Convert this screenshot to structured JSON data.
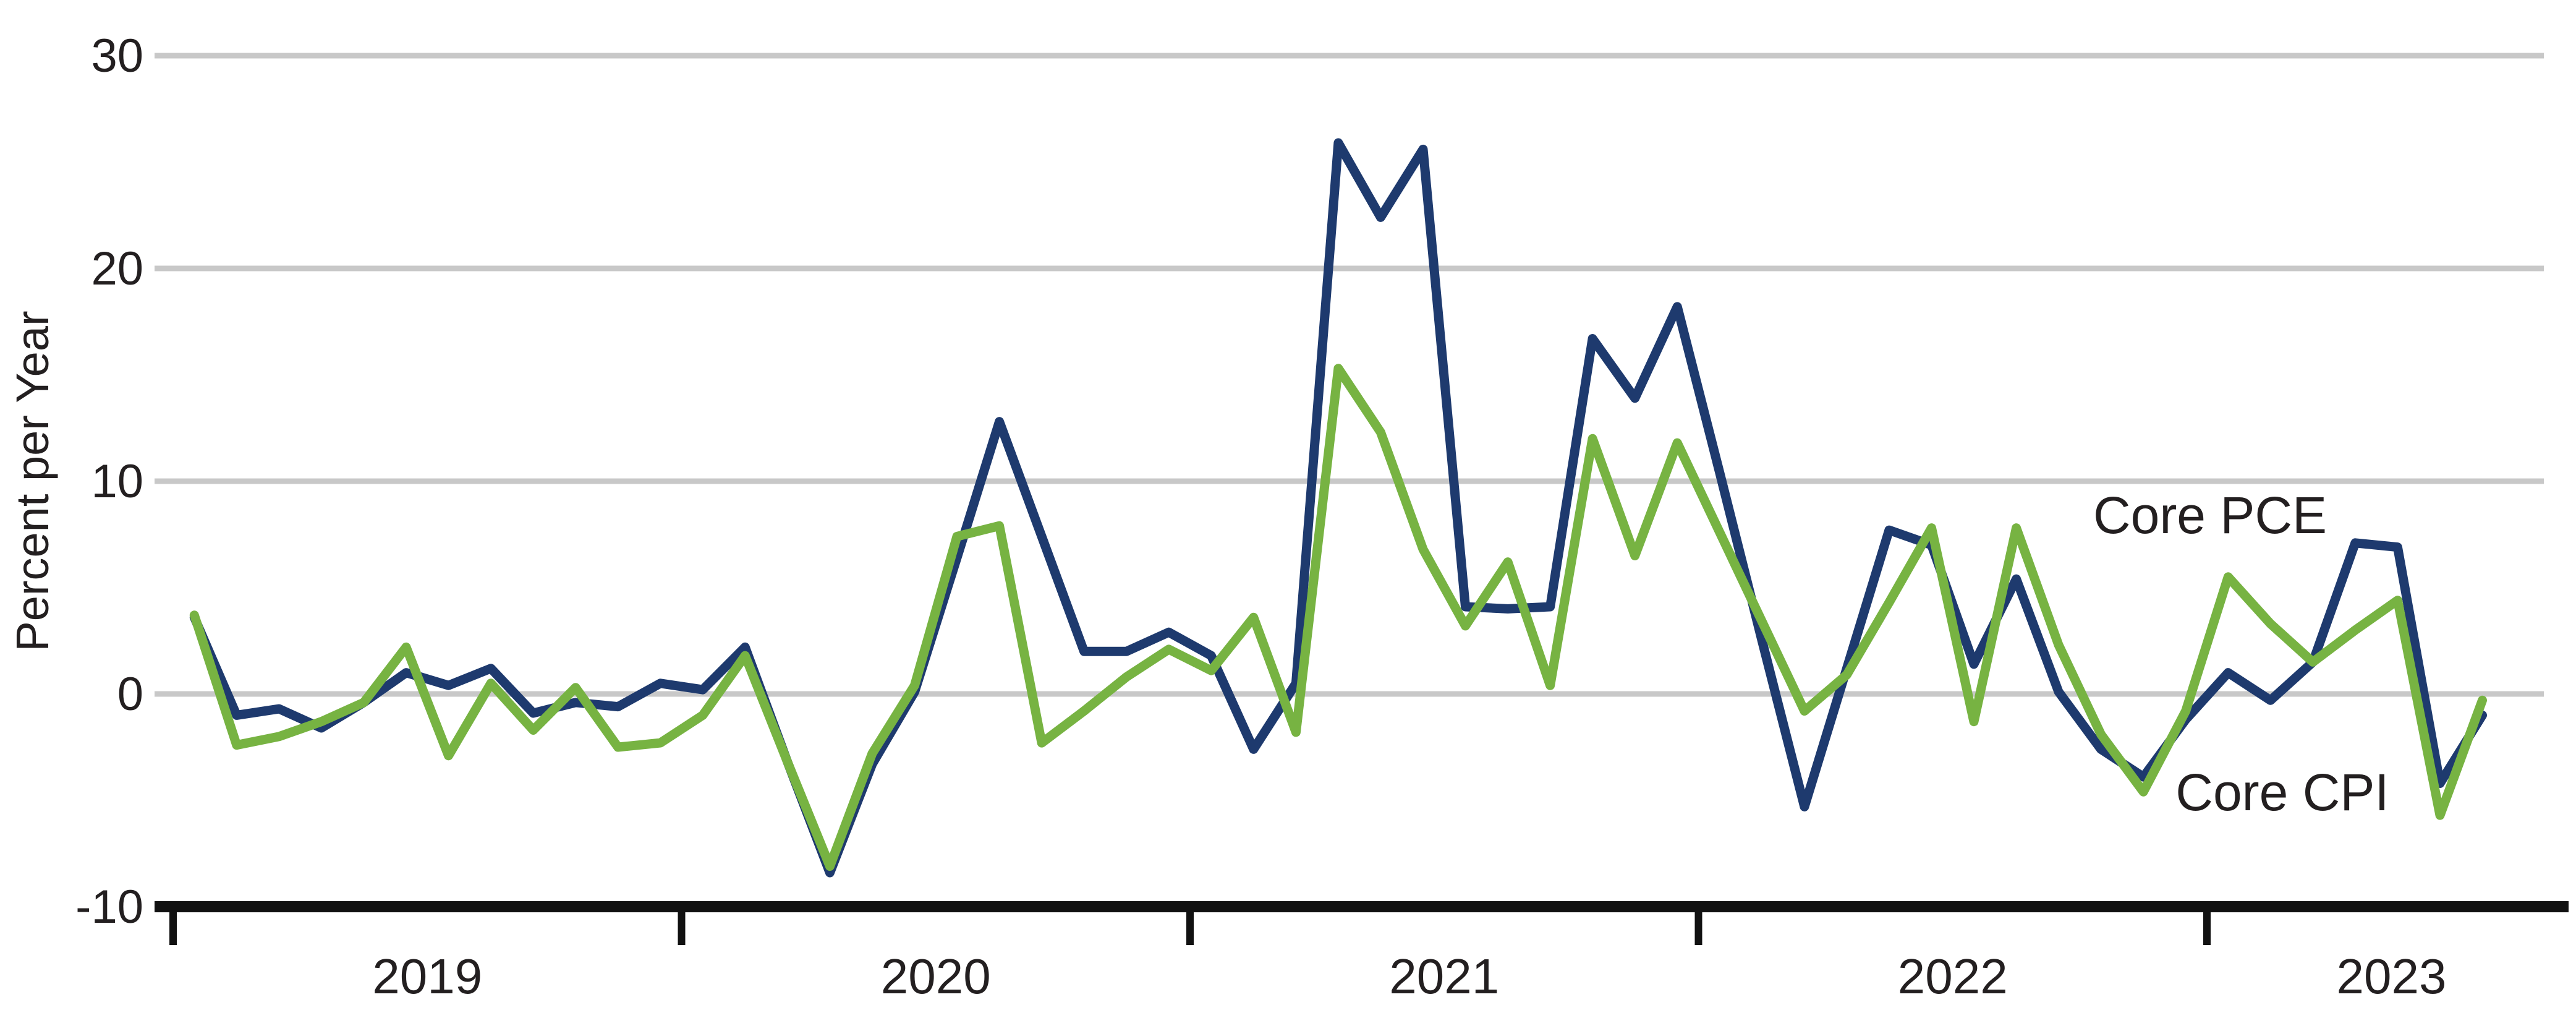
{
  "chart_data": {
    "type": "line",
    "title": "",
    "xlabel": "",
    "ylabel": "Percent per Year",
    "ylim": [
      -10,
      30
    ],
    "grid": "horizontal",
    "legend_position": "inline-labels",
    "axis_color": "#111111",
    "gridline_color": "#c8c8c8",
    "yticks": [
      30,
      20,
      10,
      0,
      -10
    ],
    "ytick_labels": [
      "30",
      "20",
      "10",
      "0",
      "-10"
    ],
    "x_year_tick_labels": [
      "2019",
      "2020",
      "2021",
      "2022",
      "2023"
    ],
    "months": [
      "2019-01",
      "2019-02",
      "2019-03",
      "2019-04",
      "2019-05",
      "2019-06",
      "2019-07",
      "2019-08",
      "2019-09",
      "2019-10",
      "2019-11",
      "2019-12",
      "2020-01",
      "2020-02",
      "2020-03",
      "2020-04",
      "2020-05",
      "2020-06",
      "2020-07",
      "2020-08",
      "2020-09",
      "2020-10",
      "2020-11",
      "2020-12",
      "2021-01",
      "2021-02",
      "2021-03",
      "2021-04",
      "2021-05",
      "2021-06",
      "2021-07",
      "2021-08",
      "2021-09",
      "2021-10",
      "2021-11",
      "2021-12",
      "2022-01",
      "2022-02",
      "2022-03",
      "2022-04",
      "2022-05",
      "2022-06",
      "2022-07",
      "2022-08",
      "2022-09",
      "2022-10",
      "2022-11",
      "2022-12",
      "2023-01",
      "2023-02",
      "2023-03",
      "2023-04",
      "2023-05",
      "2023-06",
      "2023-07"
    ],
    "series": [
      {
        "name": "Core CPI",
        "color": "#1e3a6e",
        "values": [
          3.6,
          -1.0,
          -0.7,
          -1.6,
          -0.4,
          1.0,
          0.4,
          1.2,
          -0.9,
          -0.4,
          -0.6,
          0.5,
          0.2,
          2.2,
          -3.2,
          -8.4,
          -3.3,
          0.1,
          6.4,
          12.8,
          7.4,
          2.0,
          2.0,
          2.9,
          1.8,
          -2.6,
          0.5,
          25.9,
          22.4,
          25.6,
          4.1,
          4.0,
          4.1,
          16.7,
          13.9,
          18.2,
          10.4,
          2.5,
          -5.3,
          1.2,
          7.7,
          7.0,
          1.4,
          5.4,
          0.1,
          -2.6,
          -3.9,
          -1.2,
          1.0,
          -0.3,
          1.5,
          7.1,
          6.9,
          -4.2,
          -1.0
        ]
      },
      {
        "name": "Core PCE",
        "color": "#77b342",
        "values": [
          3.7,
          -2.4,
          -2.0,
          -1.3,
          -0.4,
          2.2,
          -2.9,
          0.5,
          -1.7,
          0.3,
          -2.5,
          -2.3,
          -1.0,
          1.8,
          -3.2,
          -8.1,
          -2.8,
          0.4,
          7.4,
          7.9,
          -2.3,
          -0.8,
          0.8,
          2.1,
          1.1,
          3.6,
          -1.8,
          15.3,
          12.3,
          6.8,
          3.2,
          6.2,
          0.4,
          12.0,
          6.5,
          11.8,
          7.6,
          3.4,
          -0.8,
          0.9,
          4.3,
          7.8,
          -1.3,
          7.8,
          2.3,
          -1.9,
          -4.6,
          -0.8,
          5.5,
          3.3,
          1.5,
          3.0,
          4.4,
          -5.7,
          -0.3
        ]
      }
    ]
  }
}
